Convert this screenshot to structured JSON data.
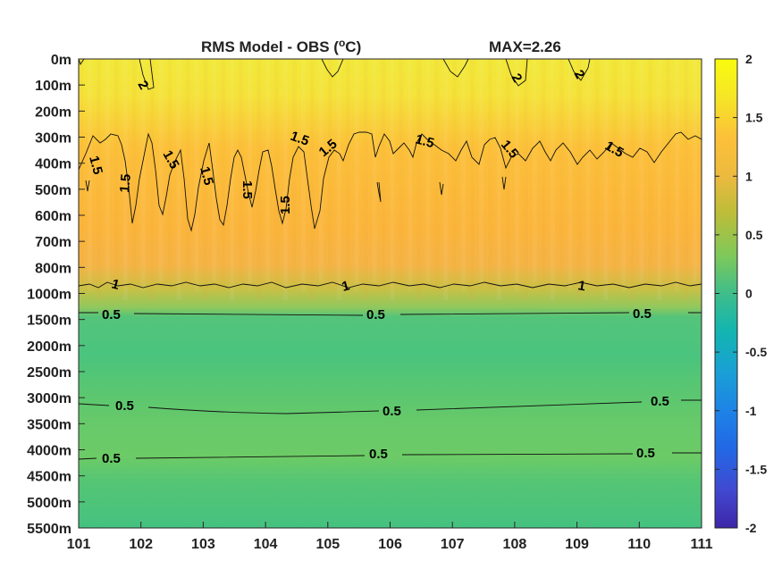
{
  "chart_data": {
    "type": "heatmap",
    "title": "RMS Model - OBS (",
    "title_superscript": "o",
    "title_unit_end": "C)",
    "max_label": "MAX=2.26",
    "xlabel": "",
    "ylabel": "",
    "x_ticks": [
      "101",
      "102",
      "103",
      "104",
      "105",
      "106",
      "107",
      "108",
      "109",
      "110",
      "111"
    ],
    "y_ticks": [
      "0m",
      "100m",
      "200m",
      "300m",
      "400m",
      "500m",
      "600m",
      "700m",
      "800m",
      "1000m",
      "1500m",
      "2000m",
      "2500m",
      "3000m",
      "3500m",
      "4000m",
      "4500m",
      "5000m",
      "5500m"
    ],
    "xlim": [
      101,
      111
    ],
    "colorbar": {
      "ticks": [
        "2",
        "1.5",
        "1",
        "0.5",
        "0",
        "-0.5",
        "-1",
        "-1.5",
        "-2"
      ],
      "range": [
        -2,
        2
      ],
      "colormap": "parula"
    },
    "depth_profile": [
      {
        "depth": "0m",
        "value": 2.05
      },
      {
        "depth": "100m",
        "value": 1.95
      },
      {
        "depth": "200m",
        "value": 1.8
      },
      {
        "depth": "300m",
        "value": 1.6
      },
      {
        "depth": "400m",
        "value": 1.5
      },
      {
        "depth": "500m",
        "value": 1.5
      },
      {
        "depth": "600m",
        "value": 1.48
      },
      {
        "depth": "700m",
        "value": 1.45
      },
      {
        "depth": "800m",
        "value": 1.35
      },
      {
        "depth": "1000m",
        "value": 1.0
      },
      {
        "depth": "1500m",
        "value": 0.45
      },
      {
        "depth": "2000m",
        "value": 0.45
      },
      {
        "depth": "2500m",
        "value": 0.46
      },
      {
        "depth": "3000m",
        "value": 0.55
      },
      {
        "depth": "3500m",
        "value": 0.58
      },
      {
        "depth": "4000m",
        "value": 0.58
      },
      {
        "depth": "4500m",
        "value": 0.55
      },
      {
        "depth": "5000m",
        "value": 0.45
      },
      {
        "depth": "5500m",
        "value": 0.45
      }
    ],
    "contour_labels": [
      "2",
      "2",
      "2",
      "1.5",
      "1.5",
      "1.5",
      "1.5",
      "1.5",
      "1.5",
      "1.5",
      "1.5",
      "1.5",
      "1.5",
      "1.5",
      "1",
      "1",
      "1",
      "0.5",
      "0.5",
      "0.5",
      "0.5",
      "0.5",
      "0.5",
      "0.5",
      "0.5",
      "0.5"
    ]
  }
}
